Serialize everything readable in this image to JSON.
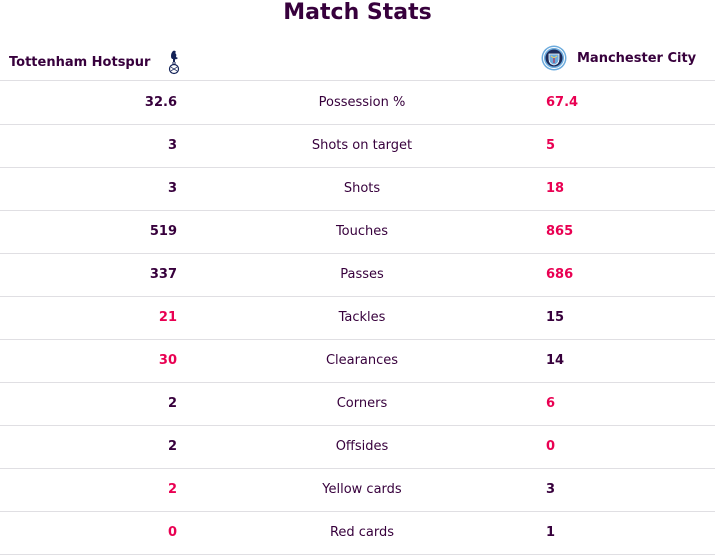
{
  "title": "Match Stats",
  "home_team": {
    "name": "Tottenham Hotspur",
    "crest": "tottenham-crest-icon"
  },
  "away_team": {
    "name": "Manchester City",
    "crest": "man-city-crest-icon"
  },
  "colors": {
    "primary_text": "#37003c",
    "highlight": "#e90052",
    "divider": "#e0dfe3"
  },
  "stats": [
    {
      "label": "Possession %",
      "home": "32.6",
      "away": "67.4",
      "leader": "away"
    },
    {
      "label": "Shots on target",
      "home": "3",
      "away": "5",
      "leader": "away"
    },
    {
      "label": "Shots",
      "home": "3",
      "away": "18",
      "leader": "away"
    },
    {
      "label": "Touches",
      "home": "519",
      "away": "865",
      "leader": "away"
    },
    {
      "label": "Passes",
      "home": "337",
      "away": "686",
      "leader": "away"
    },
    {
      "label": "Tackles",
      "home": "21",
      "away": "15",
      "leader": "home"
    },
    {
      "label": "Clearances",
      "home": "30",
      "away": "14",
      "leader": "home"
    },
    {
      "label": "Corners",
      "home": "2",
      "away": "6",
      "leader": "away"
    },
    {
      "label": "Offsides",
      "home": "2",
      "away": "0",
      "leader": "away"
    },
    {
      "label": "Yellow cards",
      "home": "2",
      "away": "3",
      "leader": "home"
    },
    {
      "label": "Red cards",
      "home": "0",
      "away": "1",
      "leader": "home"
    }
  ]
}
